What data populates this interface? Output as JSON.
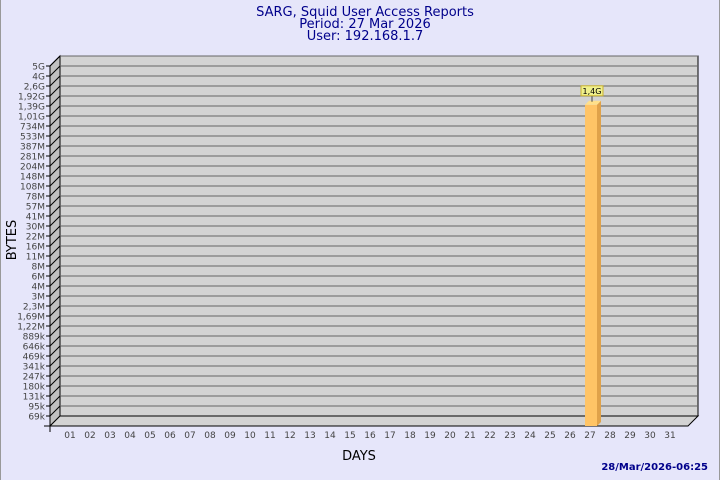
{
  "colors": {
    "background": "#e6e6fa",
    "plot": "#d3d3d3",
    "wall": "#c0c0c0",
    "title": "#00008b",
    "bar": "#ffc466",
    "bar_side": "#e0a24a",
    "label_box": "#f0f08c"
  },
  "chart_data": {
    "type": "bar",
    "title": [
      "SARG, Squid User Access Reports",
      "Period: 27 Mar 2026",
      "User: 192.168.1.7"
    ],
    "xlabel": "DAYS",
    "ylabel": "BYTES",
    "y_scale": "log",
    "y_ticks": [
      "5G",
      "4G",
      "2,6G",
      "1,92G",
      "1,39G",
      "1,01G",
      "734M",
      "533M",
      "387M",
      "281M",
      "204M",
      "148M",
      "108M",
      "78M",
      "57M",
      "41M",
      "30M",
      "22M",
      "16M",
      "11M",
      "8M",
      "6M",
      "4M",
      "3M",
      "2,3M",
      "1,69M",
      "1,22M",
      "889k",
      "646k",
      "469k",
      "341k",
      "247k",
      "180k",
      "131k",
      "95k",
      "69k"
    ],
    "categories": [
      "01",
      "02",
      "03",
      "04",
      "05",
      "06",
      "07",
      "08",
      "09",
      "10",
      "11",
      "12",
      "13",
      "14",
      "15",
      "16",
      "17",
      "18",
      "19",
      "20",
      "21",
      "22",
      "23",
      "24",
      "25",
      "26",
      "27",
      "28",
      "29",
      "30",
      "31"
    ],
    "bars": [
      {
        "day": "27",
        "value_label": "1,4G",
        "value_bytes": 1400000000
      }
    ],
    "grid": true,
    "three_d": true
  },
  "footer": {
    "timestamp": "28/Mar/2026-06:25"
  }
}
